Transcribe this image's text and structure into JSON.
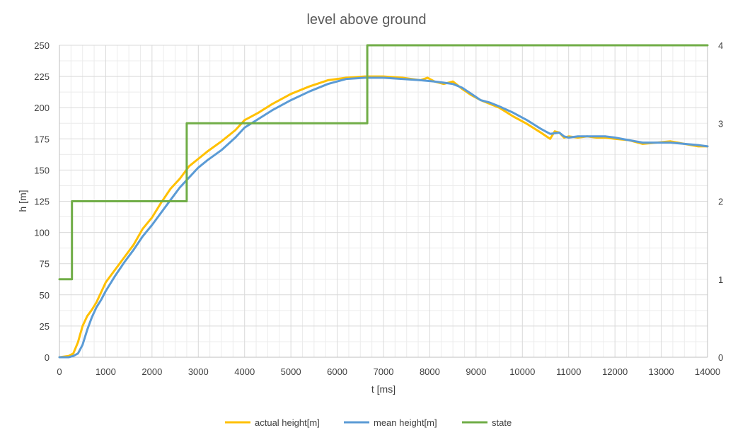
{
  "chart_data": {
    "type": "line",
    "title": "level above ground",
    "xlabel": "t [ms]",
    "ylabel": "h [m]",
    "y2label": "",
    "xlim": [
      0,
      14000
    ],
    "ylim": [
      0,
      250
    ],
    "y2lim": [
      0,
      4
    ],
    "xticks": [
      0,
      1000,
      2000,
      3000,
      4000,
      5000,
      6000,
      7000,
      8000,
      9000,
      10000,
      11000,
      12000,
      13000,
      14000
    ],
    "yticks": [
      0,
      25,
      50,
      75,
      100,
      125,
      150,
      175,
      200,
      225,
      250
    ],
    "y2ticks": [
      0,
      1,
      2,
      3,
      4
    ],
    "grid": true,
    "legend_position": "bottom",
    "series": [
      {
        "name": "actual height[m]",
        "color": "#FFC000",
        "axis": "left",
        "x": [
          0,
          200,
          300,
          400,
          500,
          600,
          700,
          800,
          900,
          1000,
          1200,
          1400,
          1600,
          1800,
          2000,
          2200,
          2400,
          2600,
          2800,
          3000,
          3200,
          3500,
          3800,
          4000,
          4300,
          4600,
          5000,
          5400,
          5800,
          6200,
          6600,
          7000,
          7400,
          7800,
          7950,
          8100,
          8300,
          8500,
          8700,
          8900,
          9100,
          9300,
          9500,
          9800,
          10100,
          10400,
          10600,
          10700,
          10800,
          10900,
          11000,
          11200,
          11400,
          11600,
          11800,
          12000,
          12300,
          12600,
          12900,
          13200,
          13500,
          13800,
          14000
        ],
        "values": [
          0,
          1,
          3,
          12,
          25,
          33,
          38,
          44,
          52,
          60,
          70,
          80,
          90,
          103,
          112,
          124,
          135,
          143,
          153,
          159,
          165,
          173,
          182,
          190,
          196,
          203,
          211,
          217,
          222,
          224,
          225,
          225,
          224,
          222,
          224,
          221,
          219,
          221,
          215,
          210,
          206,
          203,
          200,
          193,
          187,
          180,
          175,
          181,
          180,
          176,
          177,
          176,
          177,
          176,
          176,
          175,
          174,
          171,
          172,
          173,
          171,
          169,
          169
        ]
      },
      {
        "name": "mean height[m]",
        "color": "#5B9BD5",
        "axis": "left",
        "x": [
          0,
          200,
          300,
          400,
          500,
          600,
          700,
          800,
          900,
          1000,
          1200,
          1400,
          1600,
          1800,
          2000,
          2200,
          2400,
          2600,
          2800,
          3000,
          3200,
          3500,
          3800,
          4000,
          4300,
          4600,
          5000,
          5400,
          5800,
          6200,
          6600,
          7000,
          7400,
          7800,
          8100,
          8300,
          8500,
          8700,
          8900,
          9100,
          9300,
          9500,
          9800,
          10100,
          10400,
          10600,
          10800,
          10900,
          11000,
          11200,
          11400,
          11600,
          11800,
          12000,
          12300,
          12600,
          12900,
          13200,
          13500,
          13800,
          14000
        ],
        "values": [
          0,
          0,
          1,
          3,
          10,
          22,
          32,
          40,
          46,
          53,
          65,
          76,
          86,
          97,
          106,
          116,
          126,
          136,
          144,
          152,
          158,
          166,
          176,
          184,
          191,
          198,
          206,
          213,
          219,
          223,
          224,
          224,
          223,
          222,
          221,
          220,
          219,
          216,
          211,
          206,
          204,
          201,
          196,
          190,
          183,
          179,
          180,
          177,
          176,
          177,
          177,
          177,
          177,
          176,
          174,
          172,
          172,
          172,
          171,
          170,
          169
        ]
      },
      {
        "name": "state",
        "color": "#70AD47",
        "axis": "right",
        "step": true,
        "x": [
          0,
          270,
          2750,
          6650,
          14000
        ],
        "values": [
          1,
          2,
          3,
          4,
          4
        ]
      }
    ]
  }
}
